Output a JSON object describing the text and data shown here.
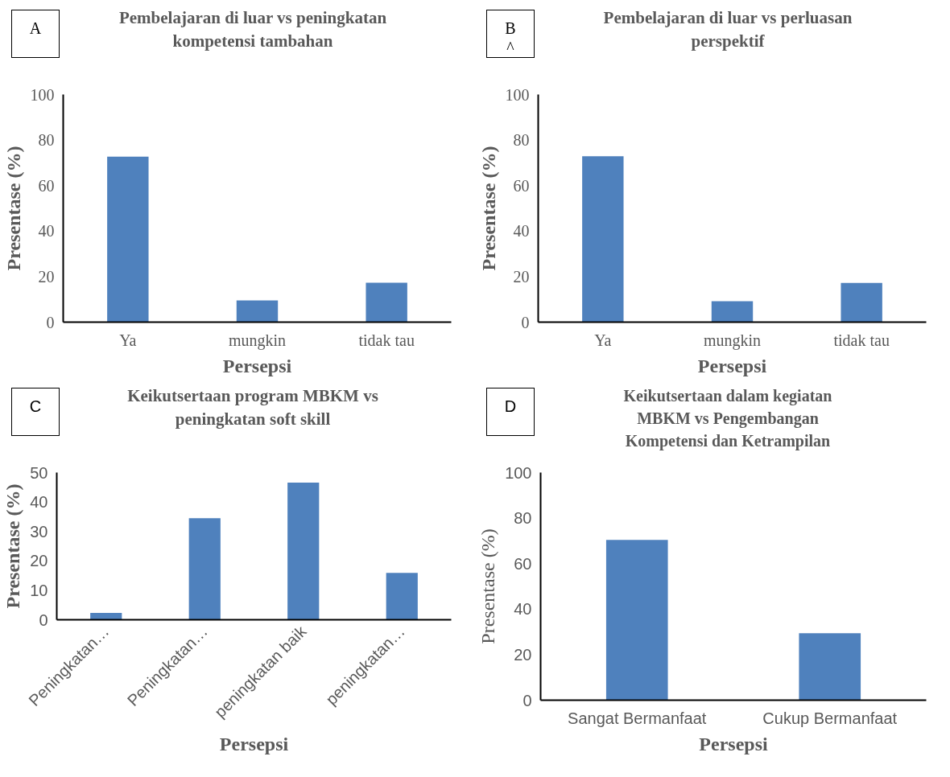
{
  "chart_data": [
    {
      "type": "bar",
      "title": "Pembelajaran di luar vs peningkatan\nkompetensi tambahan",
      "xlabel": "Persepsi",
      "ylabel": "Presentase (%)",
      "annotations": [
        "A"
      ],
      "categories": [
        "Ya",
        "mungkin",
        "tidak tau"
      ],
      "values": [
        72.7,
        9.5,
        17.3
      ],
      "color": "#4f81bd",
      "ylim": [
        0,
        100
      ],
      "yticks": [
        0,
        20,
        40,
        60,
        80,
        100
      ],
      "grid": false
    },
    {
      "type": "bar",
      "title": "Pembelajaran di luar vs perluasan\nperspektif",
      "xlabel": "Persepsi",
      "ylabel": "Presentase (%)",
      "annotations": [
        "B",
        "^"
      ],
      "categories": [
        "Ya",
        "mungkin",
        "tidak tau"
      ],
      "values": [
        72.9,
        9.2,
        17.2
      ],
      "color": "#4f81bd",
      "ylim": [
        0,
        100
      ],
      "yticks": [
        0,
        20,
        40,
        60,
        80,
        100
      ],
      "grid": false
    },
    {
      "type": "bar",
      "title": "Keikutsertaan program MBKM vs\npeningkatan soft skill",
      "xlabel": "Persepsi",
      "ylabel": "Presentase (%)",
      "annotations": [
        "C"
      ],
      "categories": [
        "Peningkatan…",
        "Peningkatan…",
        "peningkatan baik",
        "peningkatan…"
      ],
      "values": [
        2.3,
        34.5,
        46.6,
        15.9
      ],
      "color": "#4f81bd",
      "ylim": [
        0,
        50
      ],
      "yticks": [
        0,
        10,
        20,
        30,
        40,
        50
      ],
      "grid": false
    },
    {
      "type": "bar",
      "title": "Keikutsertaan dalam kegiatan\nMBKM vs Pengembangan\nKompetensi dan Ketrampilan",
      "xlabel": "Persepsi",
      "ylabel": "Presentase (%)",
      "annotations": [
        "D"
      ],
      "categories": [
        "Sangat Bermanfaat",
        "Cukup Bermanfaat"
      ],
      "values": [
        70.4,
        29.4
      ],
      "color": "#4f81bd",
      "ylim": [
        0,
        100
      ],
      "yticks": [
        0,
        20,
        40,
        60,
        80,
        100
      ],
      "grid": false
    }
  ]
}
